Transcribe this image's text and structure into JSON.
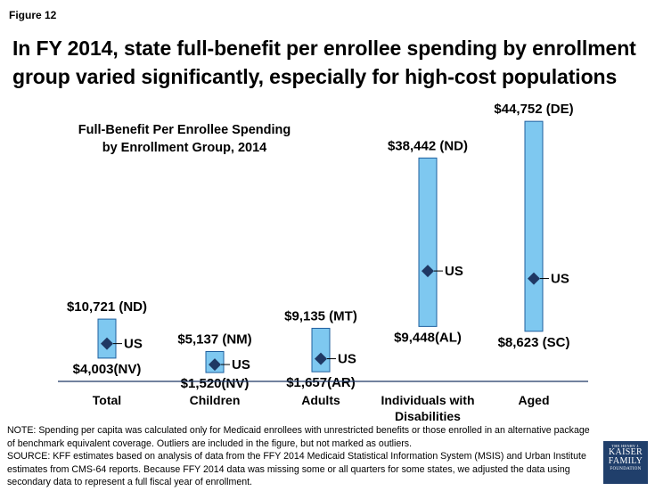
{
  "figure_label": "Figure 12",
  "headline": "In FY 2014, state full-benefit per enrollee spending by enrollment group varied significantly, especially for high-cost populations",
  "note": "NOTE: Spending per capita was calculated only for Medicaid enrollees with unrestricted benefits or those enrolled in an alternative package of benchmark equivalent coverage. Outliers are included in the figure, but not marked as outliers.",
  "source": "SOURCE: KFF estimates based on analysis of data from the FFY 2014 Medicaid Statistical Information System (MSIS) and Urban Institute estimates from CMS-64 reports. Because FFY 2014 data was missing some or all quarters for some states, we adjusted the data using secondary data to represent a full fiscal year of enrollment.",
  "logo": {
    "line1": "THE HENRY J.",
    "line2": "KAISER",
    "line3": "FAMILY",
    "line4": "FOUNDATION"
  },
  "colors": {
    "bar_fill": "#7ec8f0",
    "bar_stroke": "#1f5f9e",
    "marker": "#1f3864",
    "axis": "#1f3864"
  },
  "chart_data": {
    "type": "range",
    "title": "Full-Benefit Per Enrollee Spending by Enrollment Group, 2014",
    "title_lines": [
      "Full-Benefit Per Enrollee Spending",
      "by Enrollment Group, 2014"
    ],
    "categories": [
      "Total",
      "Children",
      "Adults",
      "Individuals with Disabilities",
      "Aged"
    ],
    "category_lines": [
      [
        "Total"
      ],
      [
        "Children"
      ],
      [
        "Adults"
      ],
      [
        "Individuals with",
        "Disabilities"
      ],
      [
        "Aged"
      ]
    ],
    "marker_label": "US",
    "ylim": [
      0,
      46000
    ],
    "grid": false,
    "series": [
      {
        "category": "Total",
        "max": 10721,
        "max_label": "$10,721 (ND)",
        "min": 4003,
        "min_label": "$4,003(NV)",
        "us": 6500
      },
      {
        "category": "Children",
        "max": 5137,
        "max_label": "$5,137 (NM)",
        "min": 1520,
        "min_label": "$1,520(NV)",
        "us": 2900
      },
      {
        "category": "Adults",
        "max": 9135,
        "max_label": "$9,135 (MT)",
        "min": 1657,
        "min_label": "$1,657(AR)",
        "us": 3900
      },
      {
        "category": "Individuals with Disabilities",
        "max": 38442,
        "max_label": "$38,442 (ND)",
        "min": 9448,
        "min_label": "$9,448(AL)",
        "us": 19000
      },
      {
        "category": "Aged",
        "max": 44752,
        "max_label": "$44,752 (DE)",
        "min": 8623,
        "min_label": "$8,623 (SC)",
        "us": 17700
      }
    ]
  }
}
